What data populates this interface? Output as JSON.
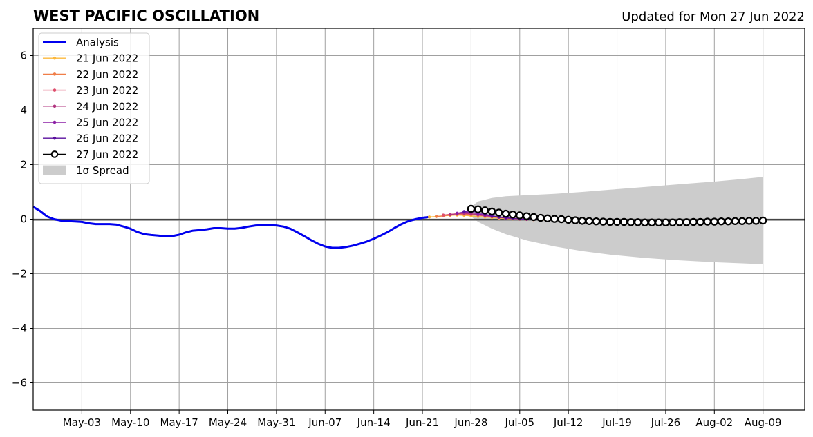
{
  "chart_data": {
    "type": "line",
    "title": "WEST PACIFIC OSCILLATION",
    "subtitle": "Updated for Mon 27 Jun 2022",
    "xlabel": "",
    "ylabel": "",
    "xlim": [
      "2022-04-26",
      "2022-08-15"
    ],
    "ylim": [
      -7,
      7
    ],
    "yticks": [
      -6,
      -4,
      -2,
      0,
      2,
      4,
      6
    ],
    "ytick_labels": [
      "−6",
      "−4",
      "−2",
      "0",
      "2",
      "4",
      "6"
    ],
    "xticks": [
      "2022-05-03",
      "2022-05-10",
      "2022-05-17",
      "2022-05-24",
      "2022-05-31",
      "2022-06-07",
      "2022-06-14",
      "2022-06-21",
      "2022-06-28",
      "2022-07-05",
      "2022-07-12",
      "2022-07-19",
      "2022-07-26",
      "2022-08-02",
      "2022-08-09"
    ],
    "xtick_labels": [
      "May-03",
      "May-10",
      "May-17",
      "May-24",
      "May-31",
      "Jun-07",
      "Jun-14",
      "Jun-21",
      "Jun-28",
      "Jul-05",
      "Jul-12",
      "Jul-19",
      "Jul-26",
      "Aug-02",
      "Aug-09"
    ],
    "grid": true,
    "legend_position": "top-left",
    "zero_line": 0,
    "analysis": {
      "name": "Analysis",
      "color": "#0000ee",
      "points": [
        [
          "2022-04-26",
          0.45
        ],
        [
          "2022-04-27",
          0.3
        ],
        [
          "2022-04-28",
          0.1
        ],
        [
          "2022-04-29",
          0.0
        ],
        [
          "2022-04-30",
          -0.05
        ],
        [
          "2022-05-01",
          -0.07
        ],
        [
          "2022-05-02",
          -0.08
        ],
        [
          "2022-05-03",
          -0.1
        ],
        [
          "2022-05-04",
          -0.15
        ],
        [
          "2022-05-05",
          -0.18
        ],
        [
          "2022-05-06",
          -0.18
        ],
        [
          "2022-05-07",
          -0.18
        ],
        [
          "2022-05-08",
          -0.2
        ],
        [
          "2022-05-09",
          -0.27
        ],
        [
          "2022-05-10",
          -0.35
        ],
        [
          "2022-05-11",
          -0.47
        ],
        [
          "2022-05-12",
          -0.55
        ],
        [
          "2022-05-13",
          -0.58
        ],
        [
          "2022-05-14",
          -0.6
        ],
        [
          "2022-05-15",
          -0.63
        ],
        [
          "2022-05-16",
          -0.62
        ],
        [
          "2022-05-17",
          -0.57
        ],
        [
          "2022-05-18",
          -0.48
        ],
        [
          "2022-05-19",
          -0.42
        ],
        [
          "2022-05-20",
          -0.4
        ],
        [
          "2022-05-21",
          -0.37
        ],
        [
          "2022-05-22",
          -0.33
        ],
        [
          "2022-05-23",
          -0.33
        ],
        [
          "2022-05-24",
          -0.35
        ],
        [
          "2022-05-25",
          -0.35
        ],
        [
          "2022-05-26",
          -0.32
        ],
        [
          "2022-05-27",
          -0.27
        ],
        [
          "2022-05-28",
          -0.23
        ],
        [
          "2022-05-29",
          -0.22
        ],
        [
          "2022-05-30",
          -0.22
        ],
        [
          "2022-05-31",
          -0.23
        ],
        [
          "2022-06-01",
          -0.27
        ],
        [
          "2022-06-02",
          -0.35
        ],
        [
          "2022-06-03",
          -0.48
        ],
        [
          "2022-06-04",
          -0.62
        ],
        [
          "2022-06-05",
          -0.77
        ],
        [
          "2022-06-06",
          -0.9
        ],
        [
          "2022-06-07",
          -1.0
        ],
        [
          "2022-06-08",
          -1.05
        ],
        [
          "2022-06-09",
          -1.05
        ],
        [
          "2022-06-10",
          -1.02
        ],
        [
          "2022-06-11",
          -0.97
        ],
        [
          "2022-06-12",
          -0.9
        ],
        [
          "2022-06-13",
          -0.82
        ],
        [
          "2022-06-14",
          -0.72
        ],
        [
          "2022-06-15",
          -0.6
        ],
        [
          "2022-06-16",
          -0.47
        ],
        [
          "2022-06-17",
          -0.32
        ],
        [
          "2022-06-18",
          -0.18
        ],
        [
          "2022-06-19",
          -0.07
        ],
        [
          "2022-06-20",
          0.0
        ],
        [
          "2022-06-21",
          0.05
        ],
        [
          "2022-06-22",
          0.08
        ]
      ]
    },
    "forecasts": [
      {
        "name": "21 Jun 2022",
        "color": "#fcb83c",
        "start": "2022-06-22",
        "values": [
          0.08,
          0.1,
          0.12,
          0.14,
          0.15,
          0.14,
          0.12,
          0.1,
          0.08,
          0.06,
          0.04,
          0.02,
          0.01,
          0.0,
          -0.01,
          -0.02,
          -0.02,
          -0.03,
          -0.03,
          -0.04,
          -0.04,
          -0.04,
          -0.04,
          -0.05,
          -0.05,
          -0.05,
          -0.05,
          -0.05,
          -0.05,
          -0.05,
          -0.05,
          -0.05,
          -0.05
        ]
      },
      {
        "name": "22 Jun 2022",
        "color": "#f07e48",
        "start": "2022-06-23",
        "values": [
          0.1,
          0.12,
          0.15,
          0.17,
          0.18,
          0.17,
          0.15,
          0.12,
          0.1,
          0.07,
          0.05,
          0.03,
          0.02,
          0.01,
          0.0,
          -0.01,
          -0.02,
          -0.02,
          -0.03,
          -0.03,
          -0.03,
          -0.04,
          -0.04,
          -0.04,
          -0.04,
          -0.04,
          -0.04,
          -0.04,
          -0.04,
          -0.04,
          -0.04,
          -0.04
        ]
      },
      {
        "name": "23 Jun 2022",
        "color": "#de4f6d",
        "start": "2022-06-24",
        "values": [
          0.15,
          0.18,
          0.2,
          0.2,
          0.18,
          0.15,
          0.12,
          0.09,
          0.06,
          0.04,
          0.02,
          0.01,
          0.0,
          -0.01,
          -0.02,
          -0.02,
          -0.03,
          -0.03,
          -0.03,
          -0.04,
          -0.04,
          -0.04,
          -0.04,
          -0.04,
          -0.04,
          -0.04,
          -0.04,
          -0.04,
          -0.04,
          -0.04,
          -0.04
        ]
      },
      {
        "name": "24 Jun 2022",
        "color": "#b1357f",
        "start": "2022-06-25",
        "values": [
          0.17,
          0.2,
          0.22,
          0.2,
          0.17,
          0.13,
          0.1,
          0.07,
          0.04,
          0.02,
          0.01,
          0.0,
          -0.01,
          -0.02,
          -0.02,
          -0.03,
          -0.03,
          -0.03,
          -0.04,
          -0.04,
          -0.04,
          -0.04,
          -0.04,
          -0.04,
          -0.04,
          -0.04,
          -0.04,
          -0.04,
          -0.04,
          -0.04
        ]
      },
      {
        "name": "25 Jun 2022",
        "color": "#8b1fa5",
        "start": "2022-06-26",
        "values": [
          0.22,
          0.26,
          0.25,
          0.2,
          0.15,
          0.11,
          0.08,
          0.05,
          0.03,
          0.01,
          0.0,
          -0.01,
          -0.02,
          -0.02,
          -0.03,
          -0.03,
          -0.03,
          -0.04,
          -0.04,
          -0.04,
          -0.04,
          -0.04,
          -0.04,
          -0.04,
          -0.04,
          -0.04,
          -0.04,
          -0.04,
          -0.04
        ]
      },
      {
        "name": "26 Jun 2022",
        "color": "#5a0f9e",
        "start": "2022-06-27",
        "values": [
          0.28,
          0.3,
          0.25,
          0.18,
          0.12,
          0.08,
          0.05,
          0.03,
          0.01,
          0.0,
          -0.01,
          -0.02,
          -0.02,
          -0.03,
          -0.03,
          -0.03,
          -0.04,
          -0.04,
          -0.04,
          -0.04,
          -0.04,
          -0.04,
          -0.04,
          -0.04,
          -0.04,
          -0.04,
          -0.04,
          -0.04
        ]
      },
      {
        "name": "27 Jun 2022",
        "color": "#000000",
        "marker": "open-circle",
        "start": "2022-06-28",
        "values": [
          0.38,
          0.36,
          0.32,
          0.28,
          0.24,
          0.2,
          0.17,
          0.14,
          0.11,
          0.08,
          0.05,
          0.03,
          0.01,
          0.0,
          -0.02,
          -0.04,
          -0.06,
          -0.07,
          -0.08,
          -0.09,
          -0.1,
          -0.1,
          -0.1,
          -0.11,
          -0.11,
          -0.12,
          -0.12,
          -0.12,
          -0.12,
          -0.12,
          -0.11,
          -0.11,
          -0.1,
          -0.1,
          -0.09,
          -0.09,
          -0.08,
          -0.08,
          -0.07,
          -0.07,
          -0.06,
          -0.06,
          -0.05
        ]
      }
    ],
    "spread": {
      "name": "1σ Spread",
      "color": "#cccccc",
      "start": "2022-06-28",
      "end": "2022-08-09",
      "upper": [
        [
          0,
          0.45
        ],
        [
          1,
          0.65
        ],
        [
          3,
          0.78
        ],
        [
          5,
          0.84
        ],
        [
          8,
          0.88
        ],
        [
          12,
          0.93
        ],
        [
          16,
          1.0
        ],
        [
          20,
          1.08
        ],
        [
          25,
          1.18
        ],
        [
          30,
          1.28
        ],
        [
          35,
          1.38
        ],
        [
          39,
          1.47
        ],
        [
          42,
          1.55
        ]
      ],
      "lower": [
        [
          0,
          0.1
        ],
        [
          1,
          -0.1
        ],
        [
          3,
          -0.35
        ],
        [
          5,
          -0.55
        ],
        [
          8,
          -0.78
        ],
        [
          12,
          -1.0
        ],
        [
          16,
          -1.17
        ],
        [
          20,
          -1.3
        ],
        [
          25,
          -1.42
        ],
        [
          30,
          -1.51
        ],
        [
          35,
          -1.58
        ],
        [
          39,
          -1.62
        ],
        [
          42,
          -1.65
        ]
      ]
    }
  }
}
